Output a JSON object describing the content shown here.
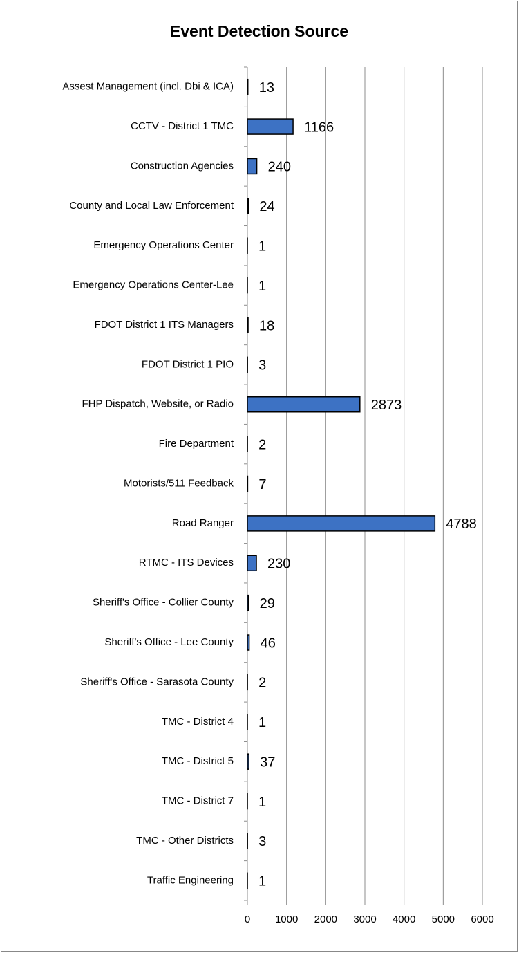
{
  "chart_data": {
    "type": "bar",
    "orientation": "horizontal",
    "title": "Event Detection Source",
    "categories": [
      "Assest Management (incl. Dbi & ICA)",
      "CCTV - District 1 TMC",
      "Construction Agencies",
      "County and Local Law Enforcement",
      "Emergency Operations Center",
      "Emergency Operations Center-Lee",
      "FDOT District 1 ITS Managers",
      "FDOT District 1 PIO",
      "FHP Dispatch, Website, or Radio",
      "Fire Department",
      "Motorists/511 Feedback",
      "Road Ranger",
      "RTMC - ITS Devices",
      "Sheriff's Office - Collier County",
      "Sheriff's Office - Lee County",
      "Sheriff's Office - Sarasota County",
      "TMC - District 4",
      "TMC - District 5",
      "TMC - District 7",
      "TMC - Other Districts",
      "Traffic Engineering"
    ],
    "values": [
      13,
      1166,
      240,
      24,
      1,
      1,
      18,
      3,
      2873,
      2,
      7,
      4788,
      230,
      29,
      46,
      2,
      1,
      37,
      1,
      3,
      1
    ],
    "color": "#3d72c4",
    "xlim": [
      0,
      6000
    ],
    "xticks": [
      0,
      1000,
      2000,
      3000,
      4000,
      5000,
      6000
    ],
    "grid": true
  }
}
